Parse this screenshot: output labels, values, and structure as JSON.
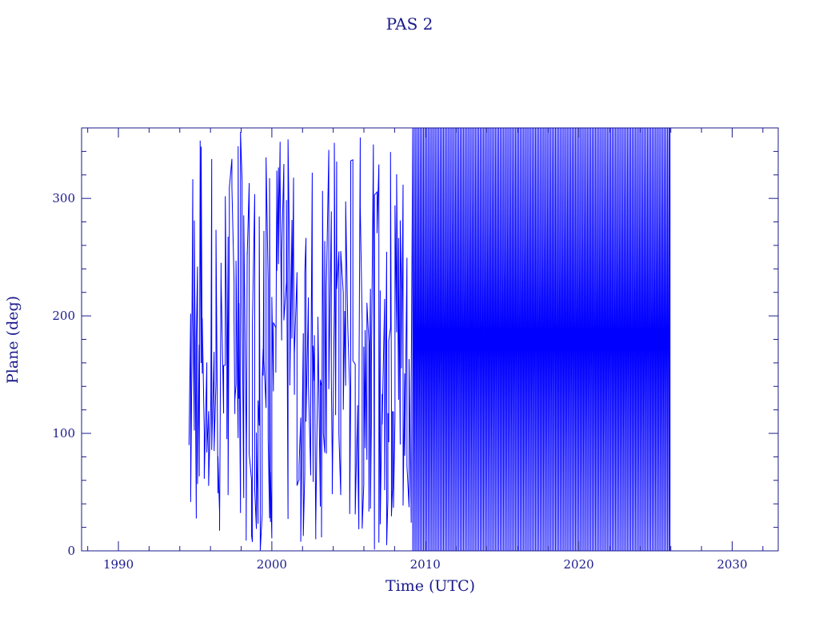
{
  "chart_data": {
    "type": "line",
    "title": "PAS 2",
    "xlabel": "Time (UTC)",
    "ylabel": "Plane (deg)",
    "xlim": [
      1987.6,
      2033.0
    ],
    "ylim": [
      0,
      360
    ],
    "x_ticks": [
      "1990",
      "2000",
      "2010",
      "2020",
      "2030"
    ],
    "y_ticks": [
      "0",
      "100",
      "200",
      "300"
    ],
    "grid": false,
    "legend": "none",
    "series": [
      {
        "start": 1994.6,
        "end": 2025.95,
        "wrap_range": [
          0,
          360
        ],
        "note_pattern": "sawtooth 0-360 repeating",
        "color": "#0000ff"
      }
    ],
    "colors": {
      "axis": "#1a1a8c",
      "data": "#0000ff",
      "text": "#1a1a8c"
    }
  }
}
